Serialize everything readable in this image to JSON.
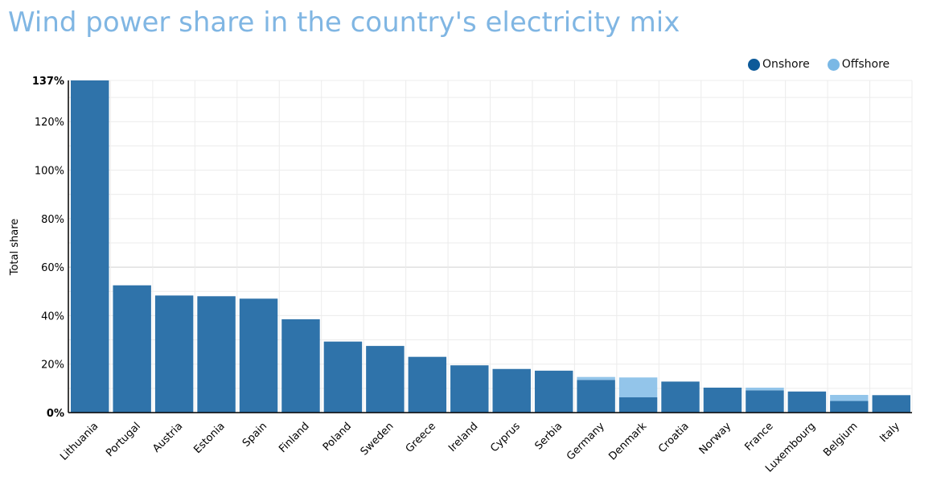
{
  "title": "Wind power share in the country's electricity mix",
  "legend": [
    {
      "label": "Onshore",
      "color": "#0d5a99"
    },
    {
      "label": "Offshore",
      "color": "#7ab8e5"
    }
  ],
  "chart_data": {
    "type": "bar",
    "stacked": true,
    "title": "Wind power share in the country's electricity mix",
    "xlabel": "",
    "ylabel": "Total share",
    "ylim": [
      0,
      137
    ],
    "yticks": [
      "0%",
      "20%",
      "40%",
      "60%",
      "80%",
      "100%",
      "120%",
      "137%"
    ],
    "grid": true,
    "legend_position": "top-right",
    "categories": [
      "Lithuania",
      "Portugal",
      "Austria",
      "Estonia",
      "Spain",
      "Finland",
      "Poland",
      "Sweden",
      "Greece",
      "Ireland",
      "Cyprus",
      "Serbia",
      "Germany",
      "Denmark",
      "Croatia",
      "Norway",
      "France",
      "Luxembourg",
      "Belgium",
      "Italy"
    ],
    "series": [
      {
        "name": "Onshore",
        "color": "#2f73aa",
        "values": [
          137,
          52.5,
          48.3,
          48,
          47,
          38.5,
          29.3,
          27.5,
          23,
          19.5,
          18,
          17.3,
          13.5,
          6.3,
          12.8,
          10.3,
          9.2,
          8.7,
          4.8,
          7.2
        ]
      },
      {
        "name": "Offshore",
        "color": "#93c5ea",
        "values": [
          0,
          0,
          0,
          0,
          0,
          0,
          0,
          0,
          0,
          0,
          0,
          0,
          1.2,
          8.2,
          0,
          0,
          1.1,
          0,
          2.5,
          0
        ]
      }
    ]
  }
}
